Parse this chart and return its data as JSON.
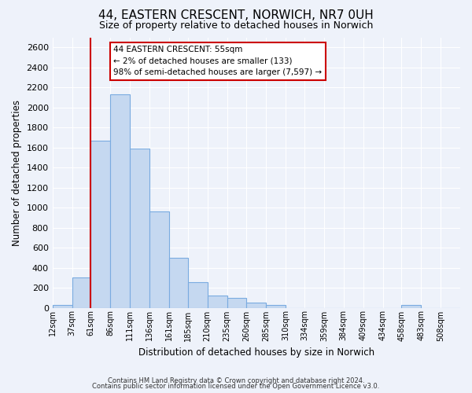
{
  "title": "44, EASTERN CRESCENT, NORWICH, NR7 0UH",
  "subtitle": "Size of property relative to detached houses in Norwich",
  "xlabel": "Distribution of detached houses by size in Norwich",
  "ylabel": "Number of detached properties",
  "bin_labels": [
    "12sqm",
    "37sqm",
    "61sqm",
    "86sqm",
    "111sqm",
    "136sqm",
    "161sqm",
    "185sqm",
    "210sqm",
    "235sqm",
    "260sqm",
    "285sqm",
    "310sqm",
    "334sqm",
    "359sqm",
    "384sqm",
    "409sqm",
    "434sqm",
    "458sqm",
    "483sqm",
    "508sqm"
  ],
  "bin_starts": [
    12,
    37,
    61,
    86,
    111,
    136,
    161,
    185,
    210,
    235,
    260,
    285,
    310,
    334,
    359,
    384,
    409,
    434,
    458,
    483,
    508
  ],
  "bar_values": [
    25,
    300,
    1670,
    2130,
    1590,
    960,
    500,
    255,
    120,
    95,
    50,
    30,
    0,
    0,
    0,
    0,
    0,
    0,
    30,
    0,
    0
  ],
  "bar_color": "#c5d8f0",
  "bar_edge_color": "#7aabe0",
  "ylim": [
    0,
    2700
  ],
  "yticks": [
    0,
    200,
    400,
    600,
    800,
    1000,
    1200,
    1400,
    1600,
    1800,
    2000,
    2200,
    2400,
    2600
  ],
  "property_line_x": 61,
  "property_line_label": "44 EASTERN CRESCENT: 55sqm",
  "annotation_line1": "← 2% of detached houses are smaller (133)",
  "annotation_line2": "98% of semi-detached houses are larger (7,597) →",
  "box_facecolor": "#ffffff",
  "box_edgecolor": "#cc0000",
  "footer1": "Contains HM Land Registry data © Crown copyright and database right 2024.",
  "footer2": "Contains public sector information licensed under the Open Government Licence v3.0.",
  "background_color": "#eef2fa",
  "plot_background": "#eef2fa",
  "grid_color": "#ffffff"
}
